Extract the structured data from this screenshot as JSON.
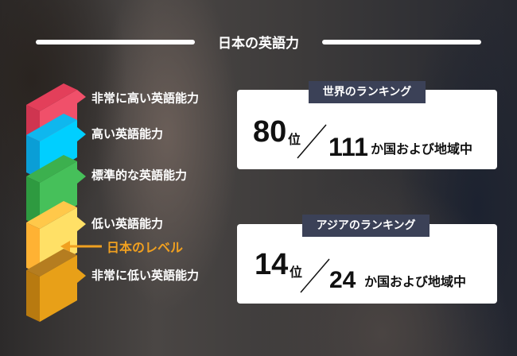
{
  "title": "日本の英語力",
  "levels": [
    {
      "label": "非常に高い英語能力",
      "color": "#f0506a"
    },
    {
      "label": "高い英語能力",
      "color": "#00cfff"
    },
    {
      "label": "標準的な英語能力",
      "color": "#46c05a"
    },
    {
      "label": "低い英語能力",
      "color": "#ffe066"
    },
    {
      "label": "非常に低い英語能力",
      "color": "#e8a018"
    }
  ],
  "japan_level": {
    "label": "日本のレベル",
    "level": "低い英語能力",
    "color": "#f0a020"
  },
  "world": {
    "tab": "世界のランキング",
    "rank": "80",
    "rank_suffix": "位",
    "total": "111",
    "total_suffix": "か国および地域中"
  },
  "asia": {
    "tab": "アジアのランキング",
    "rank": "14",
    "rank_suffix": "位",
    "total": "24",
    "total_suffix": "か国および地域中"
  }
}
